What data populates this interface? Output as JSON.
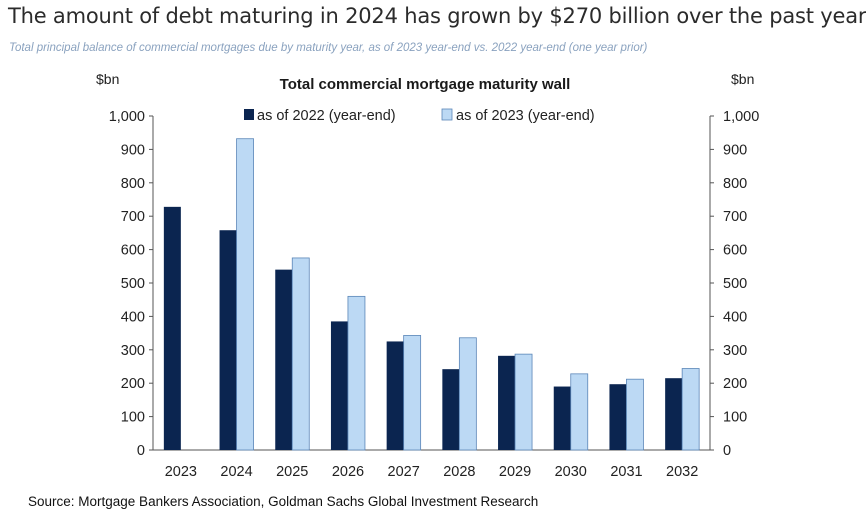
{
  "headline": "The amount of debt maturing in 2024 has grown by $270 billion over the past year",
  "subtitle": "Total principal balance of commercial mortgages due by maturity year, as of 2023 year-end vs. 2022 year-end (one year prior)",
  "source": "Source: Mortgage Bankers Association, Goldman Sachs Global Investment Research",
  "colors": {
    "series_2022": "#0b2550",
    "series_2023": "#bcd9f4",
    "series_2023_edge": "#5b86b8",
    "axis": "#555555"
  },
  "chart_data": {
    "type": "bar",
    "title": "Total commercial mortgage maturity wall",
    "ylabel_left": "$bn",
    "ylabel_right": "$bn",
    "ylim": [
      0,
      1000
    ],
    "yticks": [
      "0",
      "100",
      "200",
      "300",
      "400",
      "500",
      "600",
      "700",
      "800",
      "900",
      "1,000"
    ],
    "categories": [
      "2023",
      "2024",
      "2025",
      "2026",
      "2027",
      "2028",
      "2029",
      "2030",
      "2031",
      "2032"
    ],
    "series": [
      {
        "name": "as of 2022 (year-end)",
        "values": [
          728,
          658,
          540,
          385,
          325,
          242,
          282,
          190,
          197,
          215
        ]
      },
      {
        "name": "as of 2023 (year-end)",
        "values": [
          null,
          932,
          575,
          460,
          343,
          336,
          287,
          228,
          212,
          244
        ]
      }
    ],
    "legend_position": "top-center",
    "grid": false
  }
}
